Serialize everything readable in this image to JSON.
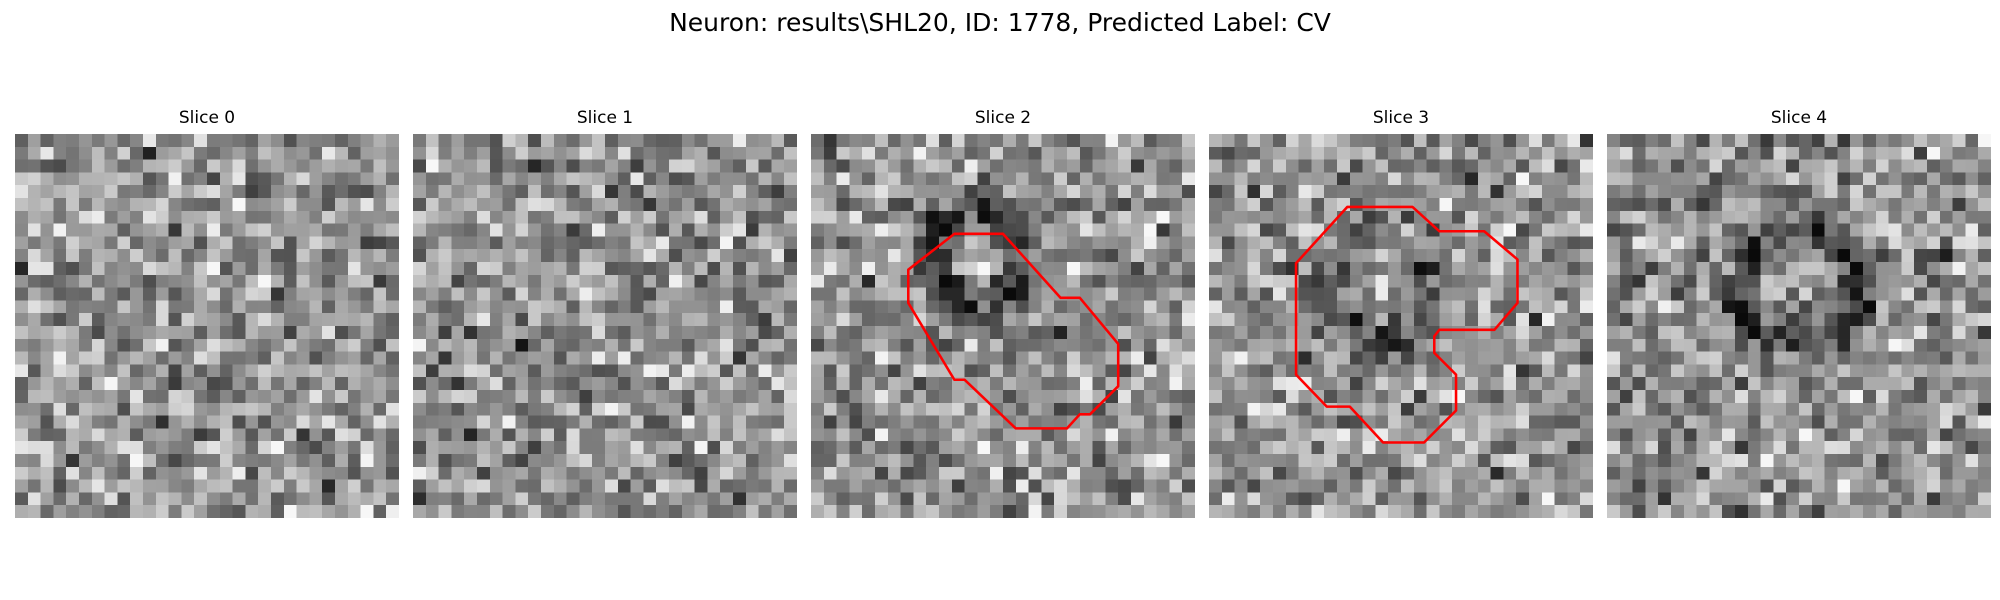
{
  "figure": {
    "title": "Neuron: results\\SHL20, ID: 1778, Predicted Label: CV"
  },
  "contour_color": "#ff0000",
  "colormap": "gray",
  "grid_size": 30,
  "slices": [
    {
      "label": "Slice 0",
      "seed": 11,
      "ring": null,
      "contour": null
    },
    {
      "label": "Slice 1",
      "seed": 23,
      "ring": {
        "cx": 12,
        "cy": 13,
        "r": 5,
        "strength": 0.08
      },
      "contour": null
    },
    {
      "label": "Slice 2",
      "seed": 37,
      "ring": {
        "cx": 13,
        "cy": 9.5,
        "r": 3.5,
        "strength": 0.35
      },
      "contour": [
        [
          7.6,
          13.2
        ],
        [
          7.6,
          10.6
        ],
        [
          11.2,
          7.8
        ],
        [
          15.0,
          7.8
        ],
        [
          19.5,
          12.8
        ],
        [
          21.0,
          12.8
        ],
        [
          24.0,
          16.4
        ],
        [
          24.0,
          19.7
        ],
        [
          21.8,
          21.9
        ],
        [
          21.0,
          21.9
        ],
        [
          20.0,
          23.0
        ],
        [
          16.0,
          23.0
        ],
        [
          12.0,
          19.2
        ],
        [
          11.2,
          19.2
        ]
      ]
    },
    {
      "label": "Slice 3",
      "seed": 51,
      "ring": {
        "cx": 13,
        "cy": 12,
        "r": 4,
        "strength": 0.25
      },
      "contour": [
        [
          6.8,
          10.1
        ],
        [
          6.8,
          18.8
        ],
        [
          9.2,
          21.3
        ],
        [
          11.0,
          21.3
        ],
        [
          13.6,
          24.1
        ],
        [
          16.8,
          24.1
        ],
        [
          19.3,
          21.6
        ],
        [
          19.3,
          18.8
        ],
        [
          17.6,
          17.1
        ],
        [
          17.6,
          15.8
        ],
        [
          18.0,
          15.3
        ],
        [
          22.3,
          15.3
        ],
        [
          24.1,
          13.2
        ],
        [
          24.1,
          9.8
        ],
        [
          21.5,
          7.6
        ],
        [
          18.0,
          7.6
        ],
        [
          15.9,
          5.7
        ],
        [
          10.8,
          5.7
        ]
      ]
    },
    {
      "label": "Slice 4",
      "seed": 67,
      "ring": {
        "cx": 15,
        "cy": 12,
        "r": 4.5,
        "strength": 0.3
      },
      "contour": null
    }
  ]
}
